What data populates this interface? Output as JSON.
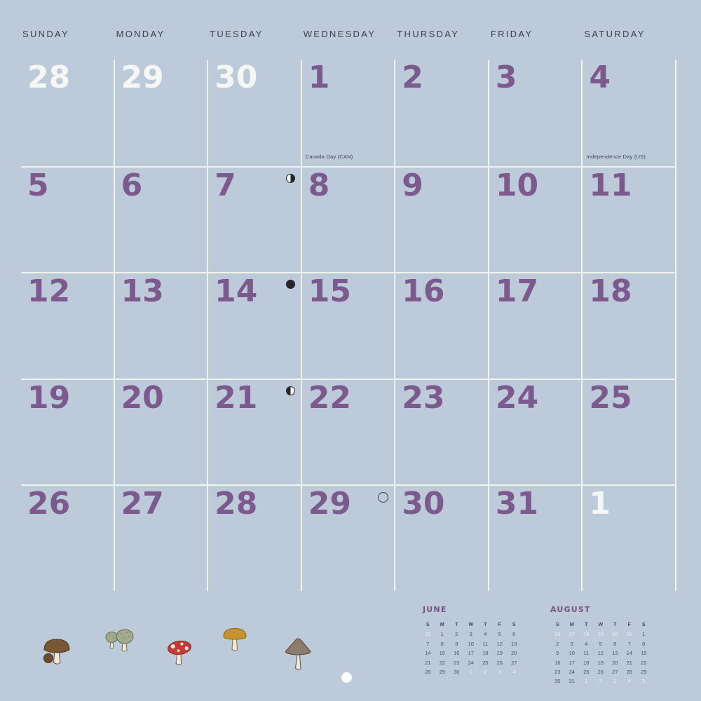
{
  "colors": {
    "background": "#bccada",
    "grid_line": "#f2f4f0",
    "accent_purple": "#7d5a8d",
    "muted_white": "#f5f7f4",
    "text_dark": "#3b434f",
    "mini_title_purple": "#77547f"
  },
  "weekday_headers": [
    "SUNDAY",
    "MONDAY",
    "TUESDAY",
    "WEDNESDAY",
    "THURSDAY",
    "FRIDAY",
    "SATURDAY"
  ],
  "month_grid": {
    "rows": [
      [
        {
          "day": "28",
          "muted": true
        },
        {
          "day": "29",
          "muted": true
        },
        {
          "day": "30",
          "muted": true
        },
        {
          "day": "1",
          "holiday": "Canada Day (CAN)"
        },
        {
          "day": "2"
        },
        {
          "day": "3"
        },
        {
          "day": "4",
          "holiday": "Independence Day (US)"
        }
      ],
      [
        {
          "day": "5"
        },
        {
          "day": "6"
        },
        {
          "day": "7",
          "moon": "last-quarter"
        },
        {
          "day": "8"
        },
        {
          "day": "9"
        },
        {
          "day": "10"
        },
        {
          "day": "11"
        }
      ],
      [
        {
          "day": "12"
        },
        {
          "day": "13"
        },
        {
          "day": "14",
          "moon": "new-moon"
        },
        {
          "day": "15"
        },
        {
          "day": "16"
        },
        {
          "day": "17"
        },
        {
          "day": "18"
        }
      ],
      [
        {
          "day": "19"
        },
        {
          "day": "20"
        },
        {
          "day": "21",
          "moon": "first-quarter"
        },
        {
          "day": "22"
        },
        {
          "day": "23"
        },
        {
          "day": "24"
        },
        {
          "day": "25"
        }
      ],
      [
        {
          "day": "26"
        },
        {
          "day": "27"
        },
        {
          "day": "28"
        },
        {
          "day": "29",
          "moon": "full-moon"
        },
        {
          "day": "30"
        },
        {
          "day": "31"
        },
        {
          "day": "1",
          "muted": true
        }
      ]
    ]
  },
  "mini_calendars": [
    {
      "id": "june",
      "title": "JUNE",
      "weekdays": [
        "S",
        "M",
        "T",
        "W",
        "T",
        "F",
        "S"
      ],
      "rows": [
        [
          {
            "v": "31",
            "muted": true
          },
          "1",
          "2",
          "3",
          "4",
          "5",
          "6"
        ],
        [
          "7",
          "8",
          "9",
          "10",
          "11",
          "12",
          "13"
        ],
        [
          "14",
          "15",
          "16",
          "17",
          "18",
          "19",
          "20"
        ],
        [
          "21",
          "22",
          "23",
          "24",
          "25",
          "26",
          "27"
        ],
        [
          "28",
          "29",
          "30",
          {
            "v": "1",
            "muted": true
          },
          {
            "v": "2",
            "muted": true
          },
          {
            "v": "3",
            "muted": true
          },
          {
            "v": "4",
            "muted": true
          }
        ]
      ]
    },
    {
      "id": "august",
      "title": "AUGUST",
      "weekdays": [
        "S",
        "M",
        "T",
        "W",
        "T",
        "F",
        "S"
      ],
      "rows": [
        [
          {
            "v": "26",
            "muted": true
          },
          {
            "v": "27",
            "muted": true
          },
          {
            "v": "28",
            "muted": true
          },
          {
            "v": "29",
            "muted": true
          },
          {
            "v": "30",
            "muted": true
          },
          {
            "v": "31",
            "muted": true
          },
          "1"
        ],
        [
          "2",
          "3",
          "4",
          "5",
          "6",
          "7",
          "8"
        ],
        [
          "9",
          "10",
          "11",
          "12",
          "13",
          "14",
          "15"
        ],
        [
          "16",
          "17",
          "18",
          "19",
          "20",
          "21",
          "22"
        ],
        [
          "23",
          "24",
          "25",
          "26",
          "27",
          "28",
          "29"
        ],
        [
          "30",
          "31",
          {
            "v": "1",
            "muted": true
          },
          {
            "v": "2",
            "muted": true
          },
          {
            "v": "3",
            "muted": true
          },
          {
            "v": "4",
            "muted": true
          },
          {
            "v": "5",
            "muted": true
          }
        ]
      ]
    }
  ],
  "decorations": {
    "mushroom_icons": [
      "brown-mushroom-icon",
      "sage-mushroom-pair-icon",
      "red-spotted-mushroom-icon",
      "ochre-mushroom-icon",
      "taupe-mushroom-icon"
    ],
    "hang_hole": true
  }
}
